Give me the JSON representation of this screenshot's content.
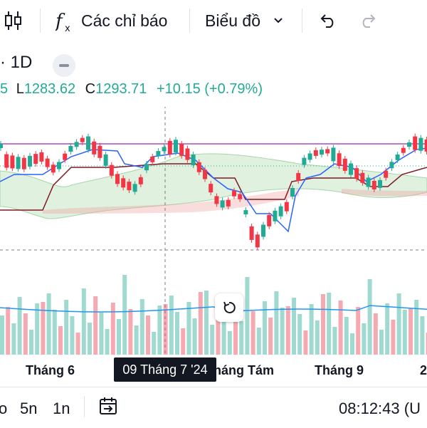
{
  "toolbar": {
    "candles_icon": "candlestick-icon",
    "indicators_icon": "fx-icon",
    "indicators_label": "Các chỉ báo",
    "chart_type_label": "Biểu đồ",
    "chevron_icon": "chevron-down-icon",
    "undo_icon": "undo-icon",
    "redo_icon": "redo-icon"
  },
  "legend": {
    "symbol": "· 1D",
    "low_label": "L",
    "low_value": "1283.62",
    "close_label": "C",
    "close_value": "1293.71",
    "change": "+10.15 (+0.79%)",
    "prefix": "5"
  },
  "colors": {
    "up": "#22ab94",
    "down": "#f23645",
    "vol_up": "#9fd9cf",
    "vol_down": "#f7a9b1",
    "conversion_line": "#2962ff",
    "base_line": "#801922",
    "cloud_green": "#a5d6a7",
    "cloud_red": "#ef9a9a",
    "resistance": "#9c27b0",
    "volume_ma": "#2196f3"
  },
  "xaxis": {
    "labels": [
      "Tháng 6",
      "háng Tám",
      "Tháng 9",
      "2"
    ],
    "crosshair_date": "09 Tháng 7 '24"
  },
  "bottom": {
    "ranges": [
      "o",
      "5n",
      "1n"
    ],
    "goto_icon": "calendar-arrow-icon",
    "time": "08:12:43 (U"
  },
  "reset_icon": "reset-icon"
}
